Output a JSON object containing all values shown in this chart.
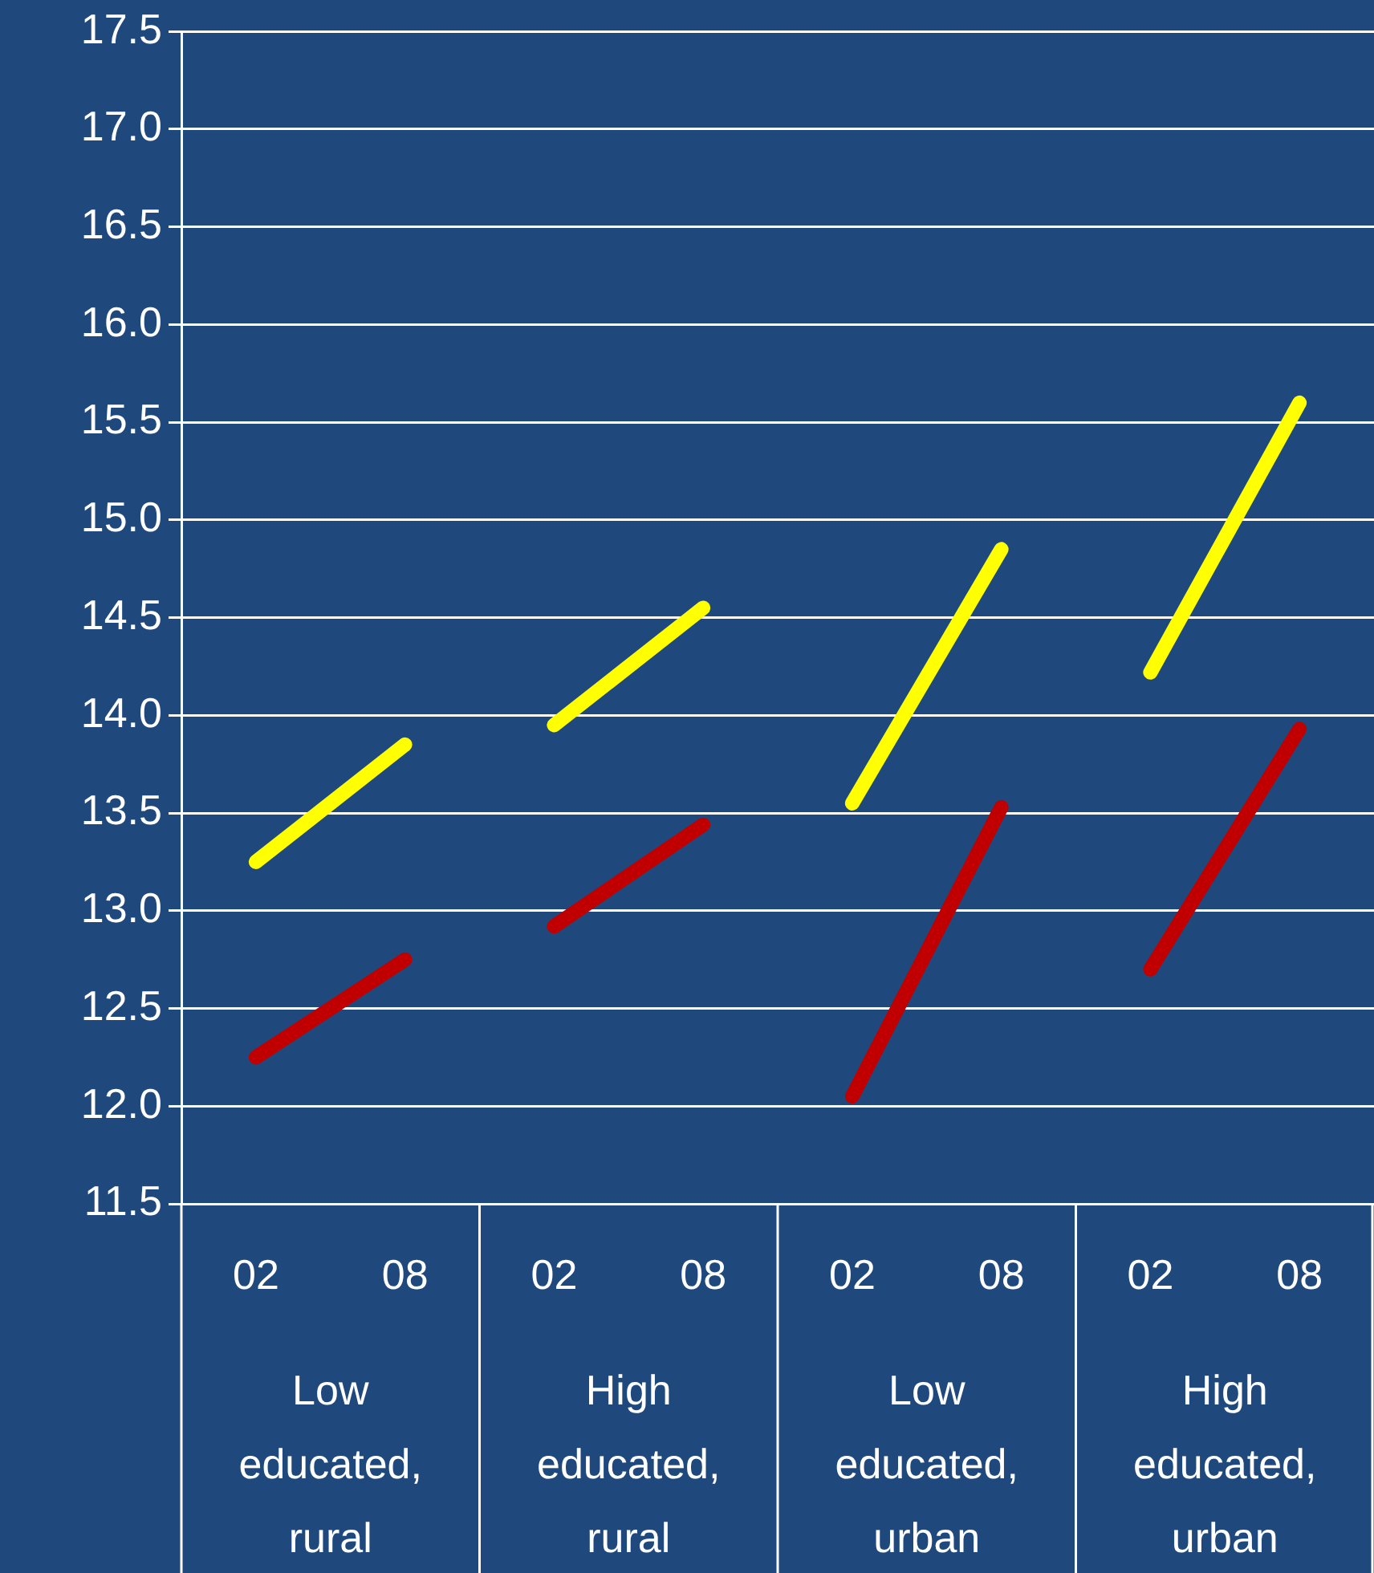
{
  "chart_data": {
    "type": "line",
    "categories": [
      "02",
      "08",
      "02",
      "08",
      "02",
      "08",
      "02",
      "08"
    ],
    "series": [
      {
        "color": "#ffff00",
        "values": [
          13.25,
          13.85,
          null,
          null,
          null,
          null,
          null,
          null
        ]
      },
      {
        "color": "#c00000",
        "values": [
          12.25,
          12.75,
          null,
          null,
          null,
          null,
          null,
          null
        ]
      },
      {
        "color": "#ffff00",
        "values": [
          null,
          null,
          13.95,
          14.55,
          null,
          null,
          null,
          null
        ]
      },
      {
        "color": "#c00000",
        "values": [
          null,
          null,
          12.92,
          13.44,
          null,
          null,
          null,
          null
        ]
      },
      {
        "color": "#ffff00",
        "values": [
          null,
          null,
          null,
          null,
          13.55,
          14.85,
          null,
          null
        ]
      },
      {
        "color": "#c00000",
        "values": [
          null,
          null,
          null,
          null,
          12.05,
          13.53,
          null,
          null
        ]
      },
      {
        "color": "#ffff00",
        "values": [
          null,
          null,
          null,
          null,
          null,
          null,
          14.22,
          15.6
        ]
      },
      {
        "color": "#c00000",
        "values": [
          null,
          null,
          null,
          null,
          null,
          null,
          12.7,
          13.93
        ]
      }
    ],
    "ylim": [
      11.5,
      17.5
    ],
    "yticks": [
      11.5,
      {
        "value": 12,
        "label": "12.0"
      },
      12.5,
      {
        "value": 13,
        "label": "13.0"
      },
      13.5,
      {
        "value": 14,
        "label": "14.0"
      },
      14.5,
      {
        "value": 15,
        "label": "15.0"
      },
      15.5,
      {
        "value": 16,
        "label": "16.0"
      },
      16.5,
      {
        "value": 17,
        "label": "17.0"
      },
      17.5
    ],
    "grid": "y",
    "legend": false,
    "marker": "none",
    "line_style": "solid",
    "annotations": [
      "Low educated, rural",
      "High educated, rural",
      "Low educated, urban",
      "High educated, urban"
    ]
  }
}
